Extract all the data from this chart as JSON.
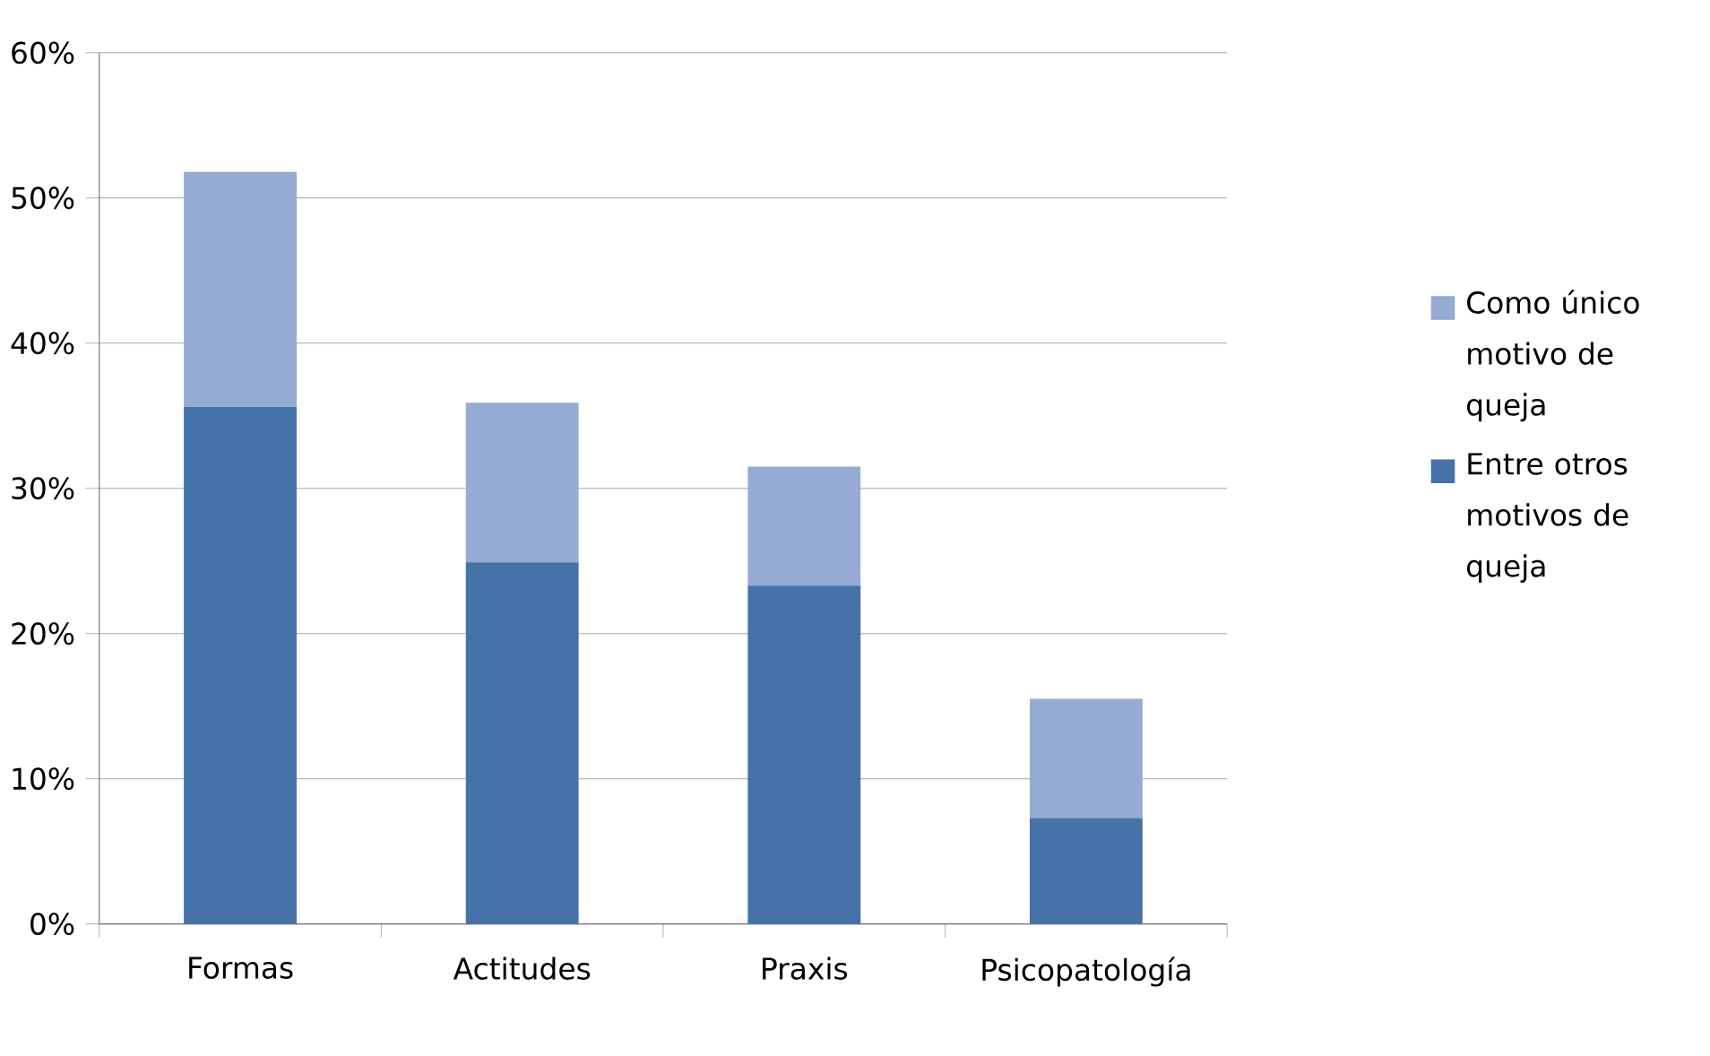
{
  "chart_data": {
    "type": "bar",
    "stacked": true,
    "categories": [
      "Formas",
      "Actitudes",
      "Praxis",
      "Psicopatología"
    ],
    "series": [
      {
        "name": "Entre otros motivos de queja",
        "color": "#4572a7",
        "values": [
          35.6,
          24.9,
          23.3,
          7.3
        ]
      },
      {
        "name": "Como único motivo de queja",
        "color": "#95abd3",
        "values": [
          16.2,
          11.0,
          8.2,
          8.2
        ]
      }
    ],
    "ylim": [
      0,
      60
    ],
    "yticks": [
      {
        "value": 0,
        "label": "0%"
      },
      {
        "value": 10,
        "label": "10%"
      },
      {
        "value": 20,
        "label": "20%"
      },
      {
        "value": 30,
        "label": "30%"
      },
      {
        "value": 40,
        "label": "40%"
      },
      {
        "value": 50,
        "label": "50%"
      },
      {
        "value": 60,
        "label": "60%"
      }
    ],
    "grid": "y",
    "legend": "right"
  }
}
